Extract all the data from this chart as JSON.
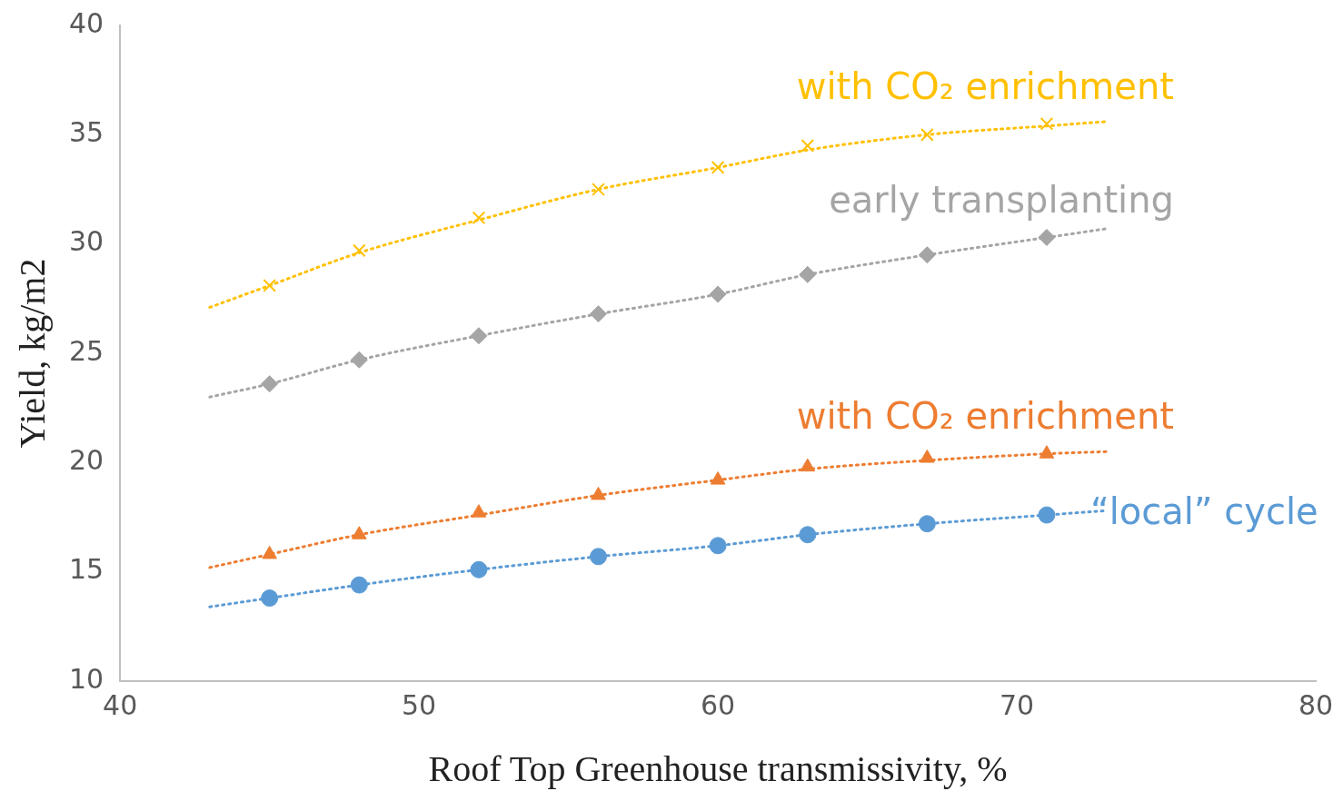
{
  "chart_data": {
    "type": "scatter",
    "xlabel": "Roof Top Greenhouse transmissivity, %",
    "ylabel": "Yield, kg/m2",
    "xlim": [
      40,
      80
    ],
    "xticks": [
      40,
      50,
      60,
      70,
      80
    ],
    "ylim": [
      10,
      40
    ],
    "yticks": [
      10,
      15,
      20,
      25,
      30,
      35,
      40
    ],
    "grid": false,
    "legend": false,
    "series": [
      {
        "type": "line",
        "line_style": "dotted",
        "marker": "none",
        "color": "#ffc000",
        "x": [
          43,
          45,
          48,
          52,
          56,
          60,
          63,
          67,
          71,
          73
        ],
        "values": [
          27.1,
          28.1,
          29.6,
          31.1,
          32.5,
          33.5,
          34.3,
          35.0,
          35.4,
          35.6
        ]
      },
      {
        "type": "line",
        "line_style": "dotted",
        "marker": "none",
        "color": "#a5a5a5",
        "x": [
          43,
          45,
          48,
          52,
          56,
          60,
          63,
          67,
          71,
          73
        ],
        "values": [
          23.0,
          23.6,
          24.7,
          25.8,
          26.8,
          27.7,
          28.6,
          29.5,
          30.3,
          30.7
        ]
      },
      {
        "type": "line",
        "line_style": "dotted",
        "marker": "none",
        "color": "#ed7d31",
        "x": [
          43,
          45,
          48,
          52,
          56,
          60,
          63,
          67,
          71,
          73
        ],
        "values": [
          15.2,
          15.8,
          16.7,
          17.6,
          18.5,
          19.2,
          19.7,
          20.1,
          20.4,
          20.5
        ]
      },
      {
        "type": "line",
        "line_style": "dotted",
        "marker": "none",
        "color": "#5b9bd5",
        "x": [
          43,
          45,
          48,
          52,
          56,
          60,
          63,
          67,
          71,
          73
        ],
        "values": [
          13.4,
          13.8,
          14.4,
          15.1,
          15.7,
          16.2,
          16.7,
          17.2,
          17.6,
          17.8
        ]
      },
      {
        "type": "scatter",
        "name": "with CO₂ enrichment",
        "marker": "cross",
        "color": "#ffc000",
        "x": [
          45,
          48,
          52,
          56,
          60,
          63,
          67,
          71
        ],
        "values": [
          28.1,
          29.7,
          31.2,
          32.5,
          33.5,
          34.5,
          35.0,
          35.5
        ]
      },
      {
        "type": "scatter",
        "name": "early transplanting",
        "marker": "diamond",
        "color": "#a5a5a5",
        "x": [
          45,
          48,
          52,
          56,
          60,
          63,
          67,
          71
        ],
        "values": [
          23.6,
          24.7,
          25.8,
          26.8,
          27.7,
          28.6,
          29.5,
          30.3
        ]
      },
      {
        "type": "scatter",
        "name": "with CO₂ enrichment",
        "marker": "triangle",
        "color": "#ed7d31",
        "x": [
          45,
          48,
          52,
          56,
          60,
          63,
          67,
          71
        ],
        "values": [
          15.8,
          16.7,
          17.7,
          18.5,
          19.2,
          19.8,
          20.2,
          20.4
        ]
      },
      {
        "type": "scatter",
        "name": "“local” cycle",
        "marker": "circle",
        "color": "#5b9bd5",
        "x": [
          45,
          48,
          52,
          56,
          60,
          63,
          67,
          71
        ],
        "values": [
          13.8,
          14.4,
          15.1,
          15.7,
          16.2,
          16.7,
          17.2,
          17.6
        ]
      }
    ]
  }
}
